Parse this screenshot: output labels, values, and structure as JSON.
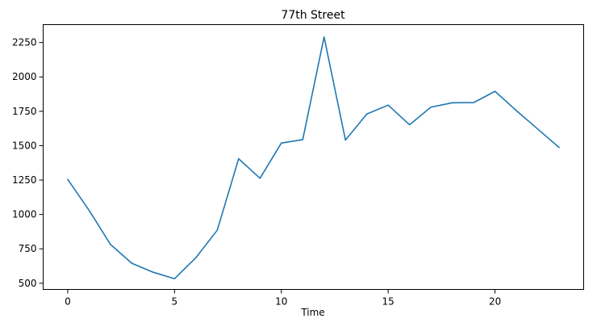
{
  "chart_data": {
    "type": "line",
    "title": "77th Street",
    "xlabel": "Time",
    "ylabel": "",
    "x": [
      0,
      1,
      2,
      3,
      4,
      5,
      6,
      7,
      8,
      9,
      10,
      11,
      12,
      13,
      14,
      15,
      16,
      17,
      18,
      19,
      20,
      21,
      22,
      23
    ],
    "series": [
      {
        "values": [
          1255,
          1030,
          782,
          645,
          580,
          533,
          686,
          886,
          1405,
          1263,
          1519,
          1544,
          2290,
          1541,
          1730,
          1795,
          1652,
          1780,
          1812,
          1813,
          1895,
          1755,
          1621,
          1487
        ],
        "color": "#1f77b4"
      }
    ],
    "xlim": [
      -1.15,
      24.15
    ],
    "ylim": [
      455,
      2380
    ],
    "xticks": [
      0,
      5,
      10,
      15,
      20
    ],
    "xtick_labels": [
      "0",
      "5",
      "10",
      "15",
      "20"
    ],
    "yticks": [
      500,
      750,
      1000,
      1250,
      1500,
      1750,
      2000,
      2250
    ],
    "ytick_labels": [
      "500",
      "750",
      "1000",
      "1250",
      "1500",
      "1750",
      "2000",
      "2250"
    ],
    "grid": false,
    "legend": "none"
  }
}
